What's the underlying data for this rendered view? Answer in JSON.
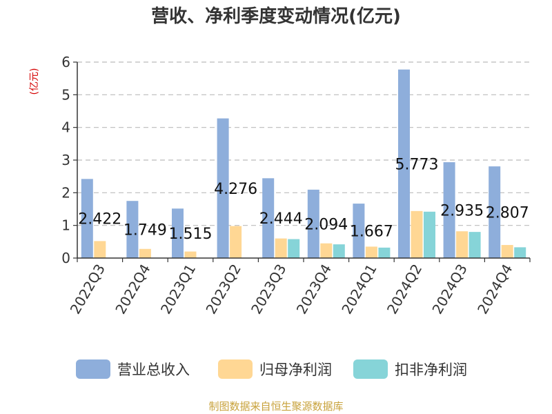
{
  "chart_data": {
    "type": "bar",
    "title": "营收、净利季度变动情况(亿元)",
    "unit_label": "(亿元)",
    "xlabel": "",
    "ylabel": "",
    "ylim": [
      0,
      6
    ],
    "yticks": [
      0,
      1,
      2,
      3,
      4,
      5,
      6
    ],
    "grid": true,
    "legend_position": "bottom",
    "categories": [
      "2022Q3",
      "2022Q4",
      "2023Q1",
      "2023Q2",
      "2023Q3",
      "2023Q4",
      "2024Q1",
      "2024Q2",
      "2024Q3",
      "2024Q4"
    ],
    "series": [
      {
        "name": "营业总收入",
        "color": "#8eaedb",
        "values": [
          2.422,
          1.749,
          1.515,
          4.276,
          2.444,
          2.094,
          1.667,
          5.773,
          2.935,
          2.807
        ],
        "labels": [
          "2.422",
          "1.749",
          "1.515",
          "4.276",
          "2.444",
          "2.094",
          "1.667",
          "5.773",
          "2.935",
          "2.807"
        ]
      },
      {
        "name": "归母净利润",
        "color": "#ffd794",
        "values": [
          0.52,
          0.28,
          0.2,
          0.98,
          0.6,
          0.45,
          0.35,
          1.44,
          0.82,
          0.4
        ]
      },
      {
        "name": "扣非净利润",
        "color": "#86d4d8",
        "values": [
          null,
          null,
          null,
          null,
          0.58,
          0.42,
          0.32,
          1.42,
          0.8,
          0.33
        ]
      }
    ]
  },
  "source": "制图数据来自恒生聚源数据库"
}
